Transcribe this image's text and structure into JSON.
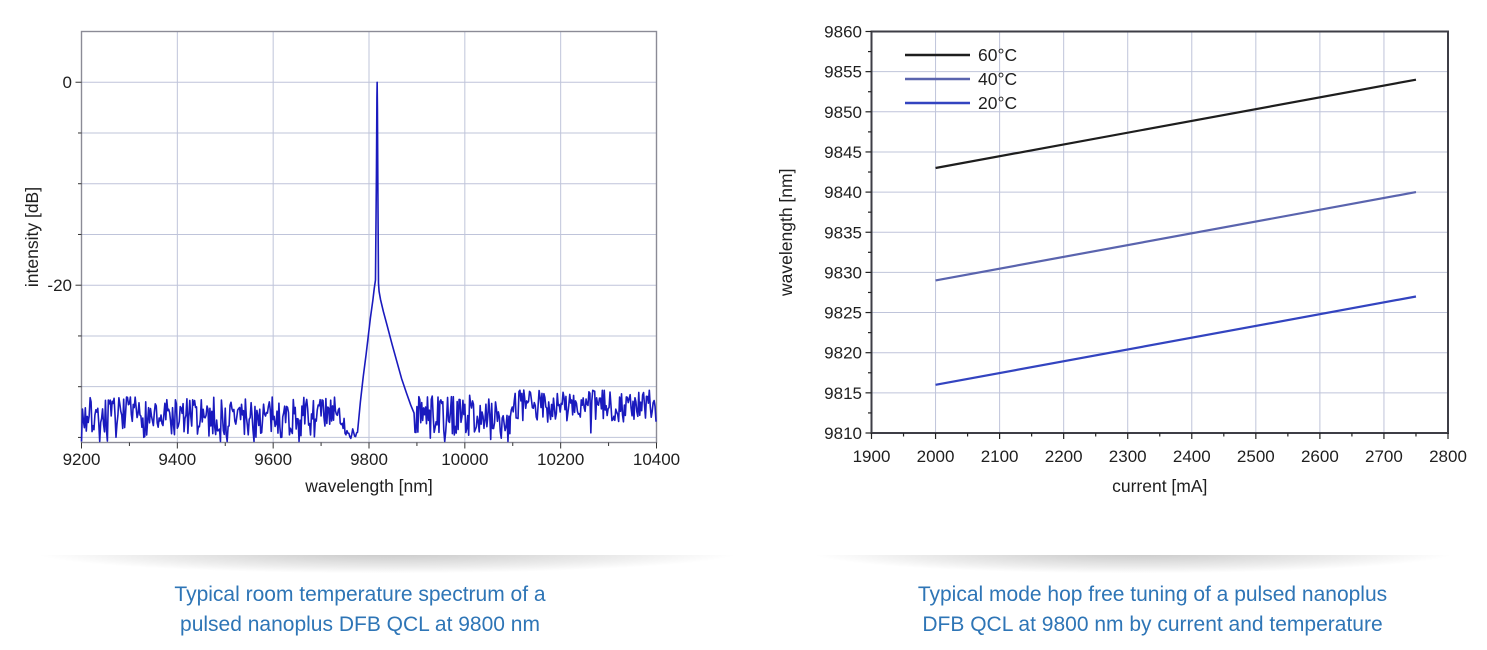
{
  "captions": {
    "left": {
      "line1": "Typical room temperature spectrum of a",
      "line2": "pulsed nanoplus DFB QCL at 9800 nm"
    },
    "right": {
      "line1": "Typical mode hop free tuning of a pulsed nanoplus",
      "line2": "DFB QCL at 9800 nm by current and temperature"
    }
  },
  "colors": {
    "caption_text": "#2e75b6",
    "grid": "#bfc4da",
    "axis_left_chart": "#8b8b96",
    "axis_right_chart": "#3e3e46",
    "tick_text": "#1f1f1f"
  },
  "chart_data": [
    {
      "id": "spectrum",
      "type": "line",
      "title": "",
      "xlabel": "wavelength [nm]",
      "ylabel": "intensity [dB]",
      "xlim": [
        9200,
        10400
      ],
      "ylim": [
        -35.5,
        5
      ],
      "grid": true,
      "x_ticks": [
        9200,
        9400,
        9600,
        9800,
        10000,
        10200,
        10400
      ],
      "x_minor_step": 100,
      "y_gridlines": [
        0,
        -5,
        -10,
        -15,
        -20,
        -25,
        -30,
        -35
      ],
      "y_tick_labels": [
        {
          "value": 0,
          "label": "0"
        },
        {
          "value": -20,
          "label": "-20"
        }
      ],
      "line_color": "#1a1abe",
      "peak_wavelength_nm": 9817,
      "peak_intensity_db": 0,
      "noise_floor_db": -33,
      "peak_points": [
        [
          9776,
          -34.5
        ],
        [
          9782,
          -31.5
        ],
        [
          9788,
          -29
        ],
        [
          9794,
          -26.8
        ],
        [
          9799,
          -24.8
        ],
        [
          9803,
          -23.2
        ],
        [
          9808,
          -21.5
        ],
        [
          9811,
          -20.3
        ],
        [
          9813.5,
          -19.5
        ],
        [
          9815.5,
          -9
        ],
        [
          9816.5,
          -1.5
        ],
        [
          9817,
          0
        ],
        [
          9817.6,
          -2.5
        ],
        [
          9818.6,
          -11
        ],
        [
          9819.8,
          -19.8
        ],
        [
          9821,
          -20.6
        ],
        [
          9824,
          -21.4
        ],
        [
          9830,
          -22.6
        ],
        [
          9838,
          -24
        ],
        [
          9848,
          -25.8
        ],
        [
          9858,
          -27.5
        ],
        [
          9868,
          -29.2
        ],
        [
          9878,
          -30.6
        ],
        [
          9887,
          -31.8
        ],
        [
          9894,
          -32.6
        ]
      ],
      "noise_segments": [
        {
          "from": 9200,
          "to": 9752,
          "mean": -33.0,
          "amp": 2.0,
          "dip_prob": 0.1,
          "dip_depth": 2.5
        },
        {
          "from": 9752,
          "to": 9774,
          "mean": -34.7,
          "amp": 0.6,
          "dip_prob": 0.05,
          "dip_depth": 0.5
        },
        {
          "from": 9896,
          "to": 10040,
          "mean": -32.8,
          "amp": 2.0,
          "dip_prob": 0.1,
          "dip_depth": 2.5
        },
        {
          "from": 10040,
          "to": 10095,
          "mean": -33.2,
          "amp": 2.0,
          "dip_prob": 0.3,
          "dip_depth": 2.6
        },
        {
          "from": 10095,
          "to": 10400,
          "mean": -31.9,
          "amp": 1.6,
          "dip_prob": 0.04,
          "dip_depth": 1.5
        }
      ],
      "noise_seed": 7
    },
    {
      "id": "tuning",
      "type": "line",
      "title": "",
      "xlabel": "current [mA]",
      "ylabel": "wavelength [nm]",
      "xlim": [
        1900,
        2800
      ],
      "ylim": [
        9810,
        9860
      ],
      "grid": true,
      "x_tick_step": 100,
      "x_minor_step": 50,
      "y_tick_step": 5,
      "y_minor_step": 2.5,
      "legend": {
        "position": "top-left"
      },
      "series": [
        {
          "name": "60°C",
          "color": "#1e1e1e",
          "x": [
            2000,
            2750
          ],
          "y": [
            9843,
            9854
          ]
        },
        {
          "name": "40°C",
          "color": "#5a64ae",
          "x": [
            2000,
            2750
          ],
          "y": [
            9829,
            9840
          ]
        },
        {
          "name": "20°C",
          "color": "#3344c0",
          "x": [
            2000,
            2750
          ],
          "y": [
            9816,
            9827
          ]
        }
      ]
    }
  ]
}
